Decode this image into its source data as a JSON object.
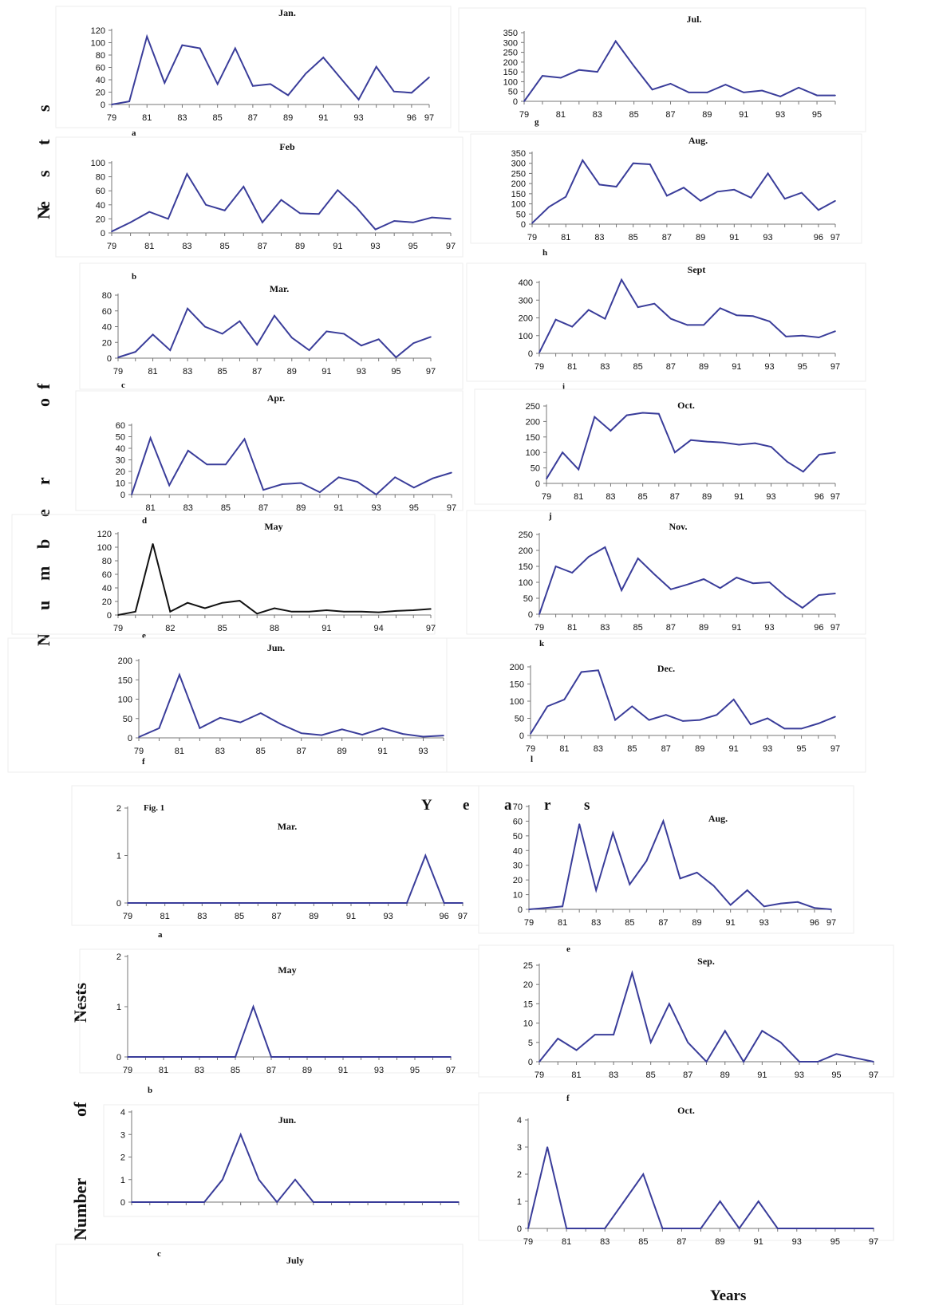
{
  "figure_caption": "Fig. 1",
  "labels": {
    "fig1_ylabel": "Number of Nests",
    "fig1_xlabel": "Years",
    "fig2_ylabel_top": "Nests",
    "fig2_ylabel_mid": "of",
    "fig2_ylabel_bot": "Number",
    "fig2_xlabel": "Years"
  },
  "colors": {
    "line": "#3a3d9a",
    "line_may": "#111111",
    "axis": "#777777"
  },
  "chart_data": [
    {
      "id": "fig1-jan",
      "type": "line",
      "title": "Jan.",
      "panel_label": "a",
      "x": [
        79,
        80,
        81,
        82,
        83,
        84,
        85,
        86,
        87,
        88,
        89,
        90,
        91,
        92,
        93,
        94,
        95,
        96,
        97
      ],
      "values": [
        0,
        5,
        110,
        35,
        96,
        91,
        33,
        91,
        30,
        33,
        15,
        50,
        76,
        42,
        8,
        61,
        21,
        19,
        44
      ],
      "x_ticks": [
        "79",
        "81",
        "83",
        "85",
        "87",
        "89",
        "91",
        "93",
        "96",
        "97"
      ],
      "y_ticks": [
        0,
        20,
        40,
        60,
        80,
        100,
        120
      ],
      "ylim": [
        0,
        120
      ]
    },
    {
      "id": "fig1-feb",
      "type": "line",
      "title": "Feb",
      "panel_label": "b",
      "x": [
        79,
        80,
        81,
        82,
        83,
        84,
        85,
        86,
        87,
        88,
        89,
        90,
        91,
        92,
        93,
        94,
        95,
        96,
        97
      ],
      "values": [
        2,
        15,
        30,
        20,
        84,
        40,
        32,
        66,
        15,
        47,
        28,
        27,
        61,
        36,
        5,
        17,
        15,
        22,
        20
      ],
      "x_ticks": [
        "79",
        "81",
        "83",
        "85",
        "87",
        "89",
        "91",
        "93",
        "95",
        "97"
      ],
      "y_ticks": [
        0,
        20,
        40,
        60,
        80,
        100
      ],
      "ylim": [
        0,
        100
      ]
    },
    {
      "id": "fig1-mar",
      "type": "line",
      "title": "Mar.",
      "panel_label": "c",
      "x": [
        79,
        80,
        81,
        82,
        83,
        84,
        85,
        86,
        87,
        88,
        89,
        90,
        91,
        92,
        93,
        94,
        95,
        96,
        97
      ],
      "values": [
        1,
        8,
        30,
        10,
        63,
        40,
        31,
        47,
        17,
        54,
        26,
        10,
        34,
        31,
        16,
        24,
        1,
        19,
        27
      ],
      "x_ticks": [
        "79",
        "81",
        "83",
        "85",
        "87",
        "89",
        "91",
        "93",
        "95",
        "97"
      ],
      "y_ticks": [
        0,
        20,
        40,
        60,
        80
      ],
      "ylim": [
        0,
        80
      ]
    },
    {
      "id": "fig1-apr",
      "type": "line",
      "title": "Apr.",
      "panel_label": "d",
      "x": [
        80,
        81,
        82,
        83,
        84,
        85,
        86,
        87,
        88,
        89,
        90,
        91,
        92,
        93,
        94,
        95,
        96,
        97
      ],
      "values": [
        0,
        49,
        8,
        38,
        26,
        26,
        48,
        4,
        9,
        10,
        2,
        15,
        11,
        0,
        15,
        6,
        14,
        19
      ],
      "x_ticks": [
        "81",
        "83",
        "85",
        "87",
        "89",
        "91",
        "93",
        "95",
        "97"
      ],
      "y_ticks": [
        0,
        10,
        20,
        30,
        40,
        50,
        60
      ],
      "ylim": [
        0,
        60
      ]
    },
    {
      "id": "fig1-may",
      "type": "line",
      "title": "May",
      "panel_label": "e",
      "x": [
        79,
        80,
        81,
        82,
        83,
        84,
        85,
        86,
        87,
        88,
        89,
        90,
        91,
        92,
        93,
        94,
        95,
        96,
        97
      ],
      "values": [
        0,
        5,
        105,
        5,
        18,
        10,
        18,
        21,
        2,
        10,
        5,
        5,
        7,
        5,
        5,
        4,
        6,
        7,
        9
      ],
      "x_ticks": [
        "79",
        "82",
        "85",
        "88",
        "91",
        "94",
        "97"
      ],
      "y_ticks": [
        0,
        20,
        40,
        60,
        80,
        100,
        120
      ],
      "ylim": [
        0,
        120
      ]
    },
    {
      "id": "fig1-jun",
      "type": "line",
      "title": "Jun.",
      "panel_label": "f",
      "x": [
        79,
        80,
        81,
        82,
        83,
        84,
        85,
        86,
        87,
        88,
        89,
        90,
        91,
        92,
        93,
        94
      ],
      "values": [
        2,
        25,
        163,
        25,
        52,
        40,
        64,
        35,
        12,
        7,
        22,
        8,
        25,
        10,
        3,
        6
      ],
      "x_ticks": [
        "79",
        "81",
        "83",
        "85",
        "87",
        "89",
        "91",
        "93"
      ],
      "y_ticks": [
        0,
        50,
        100,
        150,
        200
      ],
      "ylim": [
        0,
        200
      ]
    },
    {
      "id": "fig1-jul",
      "type": "line",
      "title": "Jul.",
      "panel_label": "g",
      "x": [
        79,
        80,
        81,
        82,
        83,
        84,
        85,
        86,
        87,
        88,
        89,
        90,
        91,
        92,
        93,
        94,
        95,
        96
      ],
      "values": [
        0,
        130,
        120,
        160,
        150,
        307,
        180,
        60,
        90,
        45,
        45,
        85,
        45,
        55,
        25,
        70,
        30,
        30
      ],
      "x_ticks": [
        "79",
        "81",
        "83",
        "85",
        "87",
        "89",
        "91",
        "93",
        "95"
      ],
      "y_ticks": [
        0,
        50,
        100,
        150,
        200,
        250,
        300,
        350
      ],
      "ylim": [
        0,
        350
      ]
    },
    {
      "id": "fig1-aug",
      "type": "line",
      "title": "Aug.",
      "panel_label": "h",
      "x": [
        79,
        80,
        81,
        82,
        83,
        84,
        85,
        86,
        87,
        88,
        89,
        90,
        91,
        92,
        93,
        94,
        95,
        96,
        97
      ],
      "values": [
        5,
        85,
        135,
        315,
        195,
        185,
        300,
        295,
        140,
        180,
        115,
        160,
        170,
        130,
        250,
        125,
        155,
        70,
        115
      ],
      "x_ticks": [
        "79",
        "81",
        "83",
        "85",
        "87",
        "89",
        "91",
        "93",
        "96",
        "97"
      ],
      "y_ticks": [
        0,
        50,
        100,
        150,
        200,
        250,
        300,
        350
      ],
      "ylim": [
        0,
        350
      ]
    },
    {
      "id": "fig1-sept",
      "type": "line",
      "title": "Sept",
      "panel_label": "i",
      "x": [
        79,
        80,
        81,
        82,
        83,
        84,
        85,
        86,
        87,
        88,
        89,
        90,
        91,
        92,
        93,
        94,
        95,
        96,
        97
      ],
      "values": [
        5,
        190,
        150,
        245,
        195,
        415,
        260,
        280,
        195,
        160,
        160,
        255,
        215,
        210,
        180,
        95,
        100,
        90,
        125
      ],
      "x_ticks": [
        "79",
        "81",
        "83",
        "85",
        "87",
        "89",
        "91",
        "93",
        "95",
        "97"
      ],
      "y_ticks": [
        0,
        100,
        200,
        300,
        400
      ],
      "ylim": [
        0,
        450
      ]
    },
    {
      "id": "fig1-oct",
      "type": "line",
      "title": "Oct.",
      "panel_label": "j",
      "x": [
        79,
        80,
        81,
        82,
        83,
        84,
        85,
        86,
        87,
        88,
        89,
        90,
        91,
        92,
        93,
        94,
        95,
        96,
        97
      ],
      "values": [
        15,
        100,
        45,
        215,
        170,
        220,
        228,
        225,
        100,
        140,
        135,
        132,
        125,
        130,
        118,
        70,
        38,
        93,
        100
      ],
      "x_ticks": [
        "79",
        "81",
        "83",
        "85",
        "87",
        "89",
        "91",
        "93",
        "96",
        "97"
      ],
      "y_ticks": [
        0,
        50,
        100,
        150,
        200,
        250
      ],
      "ylim": [
        0,
        250
      ]
    },
    {
      "id": "fig1-nov",
      "type": "line",
      "title": "Nov.",
      "panel_label": "k",
      "x": [
        79,
        80,
        81,
        82,
        83,
        84,
        85,
        86,
        87,
        88,
        89,
        90,
        91,
        92,
        93,
        94,
        95,
        96,
        97
      ],
      "values": [
        0,
        150,
        130,
        180,
        210,
        75,
        175,
        125,
        78,
        93,
        110,
        82,
        115,
        97,
        100,
        55,
        20,
        60,
        65
      ],
      "x_ticks": [
        "79",
        "81",
        "83",
        "85",
        "87",
        "89",
        "91",
        "93",
        "96",
        "97"
      ],
      "y_ticks": [
        0,
        50,
        100,
        150,
        200,
        250
      ],
      "ylim": [
        0,
        250
      ]
    },
    {
      "id": "fig1-dec",
      "type": "line",
      "title": "Dec.",
      "panel_label": "l",
      "x": [
        79,
        80,
        81,
        82,
        83,
        84,
        85,
        86,
        87,
        88,
        89,
        90,
        91,
        92,
        93,
        94,
        95,
        96,
        97
      ],
      "values": [
        5,
        85,
        105,
        185,
        190,
        45,
        85,
        45,
        60,
        42,
        45,
        60,
        105,
        32,
        50,
        20,
        20,
        35,
        55
      ],
      "x_ticks": [
        "79",
        "81",
        "83",
        "85",
        "87",
        "89",
        "91",
        "93",
        "95",
        "97"
      ],
      "y_ticks": [
        0,
        50,
        100,
        150,
        200
      ],
      "ylim": [
        0,
        200
      ]
    },
    {
      "id": "fig2-mar",
      "type": "line",
      "title": "Mar.",
      "panel_label": "a",
      "x": [
        79,
        80,
        81,
        82,
        83,
        84,
        85,
        86,
        87,
        88,
        89,
        90,
        91,
        92,
        93,
        94,
        95,
        96,
        97
      ],
      "values": [
        0,
        0,
        0,
        0,
        0,
        0,
        0,
        0,
        0,
        0,
        0,
        0,
        0,
        0,
        0,
        0,
        1,
        0,
        0
      ],
      "x_ticks": [
        "79",
        "81",
        "83",
        "85",
        "87",
        "89",
        "91",
        "93",
        "96",
        "97"
      ],
      "y_ticks": [
        0,
        1,
        2
      ],
      "ylim": [
        0,
        2
      ]
    },
    {
      "id": "fig2-may",
      "type": "line",
      "title": "May",
      "panel_label": "b",
      "x": [
        79,
        80,
        81,
        82,
        83,
        84,
        85,
        86,
        87,
        88,
        89,
        90,
        91,
        92,
        93,
        94,
        95,
        96,
        97
      ],
      "values": [
        0,
        0,
        0,
        0,
        0,
        0,
        0,
        1,
        0,
        0,
        0,
        0,
        0,
        0,
        0,
        0,
        0,
        0,
        0
      ],
      "x_ticks": [
        "79",
        "81",
        "83",
        "85",
        "87",
        "89",
        "91",
        "93",
        "95",
        "97"
      ],
      "y_ticks": [
        0,
        1,
        2
      ],
      "ylim": [
        0,
        2
      ]
    },
    {
      "id": "fig2-jun",
      "type": "line",
      "title": "Jun.",
      "panel_label": "c",
      "x": [
        79,
        80,
        81,
        82,
        83,
        84,
        85,
        86,
        87,
        88,
        89,
        90,
        91,
        92,
        93,
        94,
        95,
        96,
        97
      ],
      "values": [
        0,
        0,
        0,
        0,
        0,
        1,
        3,
        1,
        0,
        1,
        0,
        0,
        0,
        0,
        0,
        0,
        0,
        0,
        0
      ],
      "x_ticks": [],
      "y_ticks": [
        0,
        1,
        2,
        3,
        4
      ],
      "ylim": [
        0,
        4
      ]
    },
    {
      "id": "fig2-aug",
      "type": "line",
      "title": "Aug.",
      "panel_label": "e",
      "x": [
        79,
        80,
        81,
        82,
        83,
        84,
        85,
        86,
        87,
        88,
        89,
        90,
        91,
        92,
        93,
        94,
        95,
        96,
        97
      ],
      "values": [
        0,
        1,
        2,
        58,
        13,
        52,
        17,
        33,
        60,
        21,
        25,
        16,
        3,
        13,
        2,
        4,
        5,
        1,
        0
      ],
      "x_ticks": [
        "79",
        "81",
        "83",
        "85",
        "87",
        "89",
        "91",
        "93",
        "96",
        "97"
      ],
      "y_ticks": [
        0,
        10,
        20,
        30,
        40,
        50,
        60,
        70
      ],
      "ylim": [
        0,
        70
      ]
    },
    {
      "id": "fig2-sep",
      "type": "line",
      "title": "Sep.",
      "panel_label": "f",
      "x": [
        79,
        80,
        81,
        82,
        83,
        84,
        85,
        86,
        87,
        88,
        89,
        90,
        91,
        92,
        93,
        94,
        95,
        96,
        97
      ],
      "values": [
        0,
        6,
        3,
        7,
        7,
        23,
        5,
        15,
        5,
        0,
        8,
        0,
        8,
        5,
        0,
        0,
        2,
        1,
        0
      ],
      "x_ticks": [
        "79",
        "81",
        "83",
        "85",
        "87",
        "89",
        "91",
        "93",
        "95",
        "97"
      ],
      "y_ticks": [
        0,
        5,
        10,
        15,
        20,
        25
      ],
      "ylim": [
        0,
        25
      ]
    },
    {
      "id": "fig2-oct",
      "type": "line",
      "title": "Oct.",
      "panel_label": "",
      "x": [
        79,
        80,
        81,
        82,
        83,
        84,
        85,
        86,
        87,
        88,
        89,
        90,
        91,
        92,
        93,
        94,
        95,
        96,
        97
      ],
      "values": [
        0,
        3,
        0,
        0,
        0,
        1,
        2,
        0,
        0,
        0,
        1,
        0,
        1,
        0,
        0,
        0,
        0,
        0,
        0
      ],
      "x_ticks": [
        "79",
        "81",
        "83",
        "85",
        "87",
        "89",
        "91",
        "93",
        "95",
        "97"
      ],
      "y_ticks": [
        0,
        1,
        2,
        3,
        4
      ],
      "ylim": [
        0,
        4
      ]
    },
    {
      "id": "fig2-july",
      "type": "line",
      "title": "July",
      "panel_label": "",
      "x": [],
      "values": [],
      "x_ticks": [],
      "y_ticks": [],
      "ylim": [
        0,
        1
      ]
    }
  ]
}
